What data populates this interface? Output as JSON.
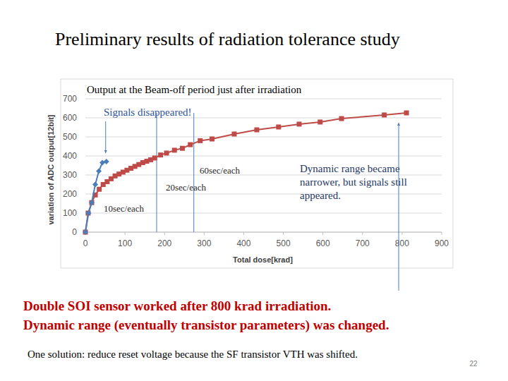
{
  "chart_data": {
    "type": "line",
    "title": "Output at the Beam-off period just after irradiation",
    "x_label": "Total dose[krad]",
    "y_label": "variation of ADC output[12bit]",
    "xlim": [
      0,
      900
    ],
    "xticks": [
      0,
      100,
      200,
      300,
      400,
      500,
      600,
      700,
      800,
      900
    ],
    "ylim": [
      0,
      700
    ],
    "yticks": [
      0,
      100,
      200,
      300,
      400,
      500,
      600,
      700
    ],
    "grid": true,
    "phase_boundaries": [
      180,
      274
    ],
    "series": [
      {
        "name": "Signals disappeared",
        "color": "#4a7ebb",
        "marker": "diamond",
        "x": [
          0,
          8,
          16,
          25,
          34,
          43,
          53
        ],
        "values": [
          0,
          100,
          155,
          250,
          320,
          365,
          370
        ]
      },
      {
        "name": "Signals still appeared",
        "color": "#be4b48",
        "marker": "square",
        "x": [
          0,
          7,
          16,
          25,
          35,
          45,
          55,
          65,
          75,
          85,
          95,
          105,
          115,
          125,
          135,
          145,
          155,
          165,
          175,
          190,
          205,
          225,
          245,
          265,
          290,
          320,
          376,
          433,
          488,
          540,
          593,
          647,
          755,
          811
        ],
        "values": [
          0,
          100,
          155,
          195,
          225,
          250,
          265,
          280,
          295,
          305,
          315,
          325,
          335,
          345,
          355,
          365,
          372,
          380,
          389,
          405,
          415,
          430,
          440,
          459,
          480,
          489,
          515,
          537,
          552,
          567,
          578,
          596,
          615,
          626
        ]
      }
    ],
    "annotations": [
      "Signals disappeared!",
      "60sec/each",
      "20sec/each",
      "10sec/each"
    ],
    "note_lines": [
      "Dynamic range became",
      "narrower, but signals still",
      "appeared."
    ]
  },
  "slide": {
    "title": "Preliminary results of radiation tolerance study",
    "conclusions": [
      "Double SOI sensor worked after 800 krad irradiation.",
      "Dynamic range (eventually transistor parameters) was changed."
    ],
    "solution": "One solution: reduce reset voltage because the SF transistor VTH was shifted.",
    "page_number": "22"
  }
}
